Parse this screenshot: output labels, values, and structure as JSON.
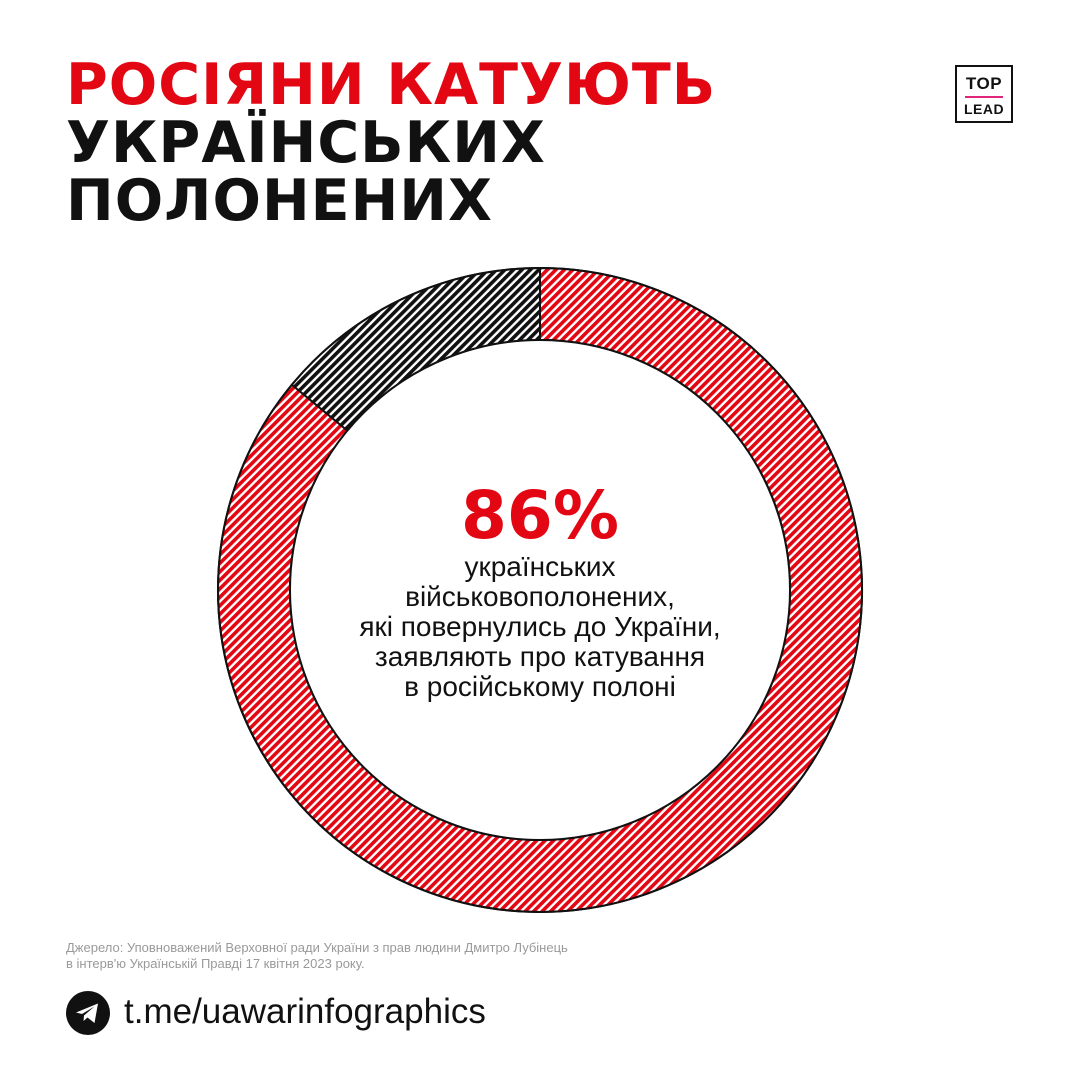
{
  "title": {
    "line1": "РОСІЯНИ КАТУЮТЬ",
    "line2": "УКРАЇНСЬКИХ",
    "line3": "ПОЛОНЕНИХ"
  },
  "logo": {
    "top": "TOP",
    "bottom": "LEAD"
  },
  "chart_data": {
    "type": "pie",
    "donut": true,
    "slices": [
      {
        "value": 86,
        "color": "#e30613",
        "pattern": "diagonal-hatch"
      },
      {
        "value": 14,
        "color": "#111111",
        "pattern": "diagonal-hatch"
      }
    ],
    "center_value": "86%",
    "center_label": "українських\nвійськовополонених,\nякі повернулись до України,\nзаявляють про катування\nв російському полоні"
  },
  "source": "Джерело: Уповноважений Верховної ради України з прав людини Дмитро Лубінець\nв інтерв'ю Українській Правді 17 квітня 2023 року.",
  "footer": {
    "icon": "telegram-icon",
    "link": "t.me/uawarinfographics"
  },
  "colors": {
    "accent": "#e30613",
    "text": "#111111",
    "muted": "#9a9a9a"
  }
}
